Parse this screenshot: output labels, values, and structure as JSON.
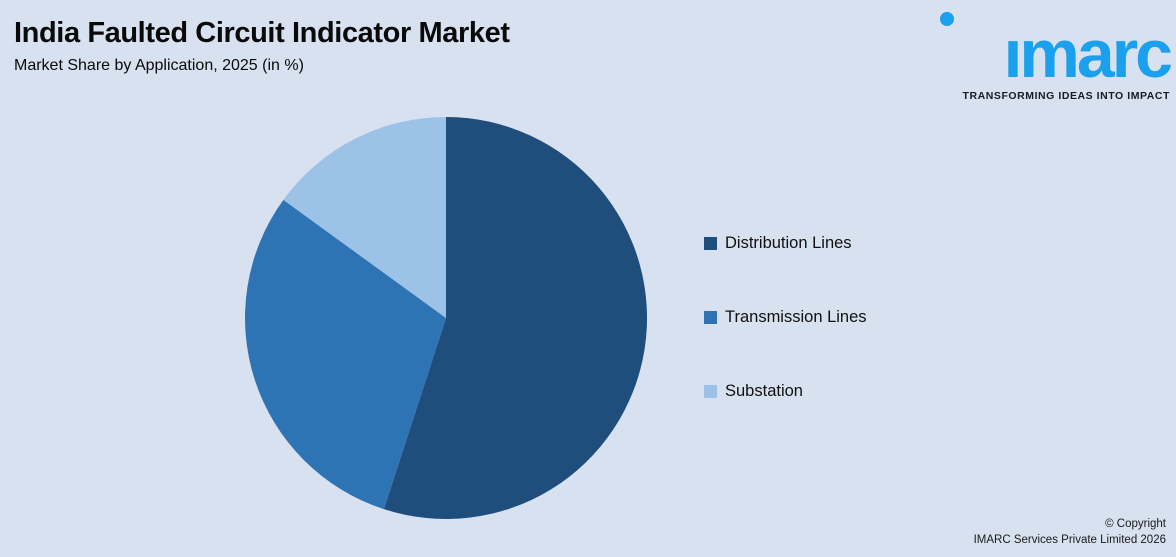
{
  "page": {
    "title": "India Faulted Circuit Indicator Market",
    "subtitle": "Market Share by Application, 2025 (in %)"
  },
  "logo": {
    "wordmark": "imarc",
    "tagline": "TRANSFORMING IDEAS INTO IMPACT",
    "brand_color": "#1BA0EE"
  },
  "chart_data": {
    "type": "pie",
    "title": "India Faulted Circuit Indicator Market",
    "subtitle": "Market Share by Application, 2025 (in %)",
    "unit": "%",
    "start_angle_deg": 0,
    "direction": "clockwise",
    "legend_position": "right",
    "categories": [
      "Distribution Lines",
      "Transmission Lines",
      "Substation"
    ],
    "values": [
      55,
      30,
      15
    ],
    "slices": [
      {
        "label": "Distribution Lines",
        "value": 55,
        "color": "#1F4E7C"
      },
      {
        "label": "Transmission Lines",
        "value": 30,
        "color": "#2E74B5"
      },
      {
        "label": "Substation",
        "value": 15,
        "color": "#9CC2E8"
      }
    ]
  },
  "footer": {
    "copyright_line1": "© Copyright",
    "copyright_line2": "IMARC Services Private Limited 2026"
  },
  "colors": {
    "background": "#D8E1F0",
    "text": "#0A0A0A"
  }
}
